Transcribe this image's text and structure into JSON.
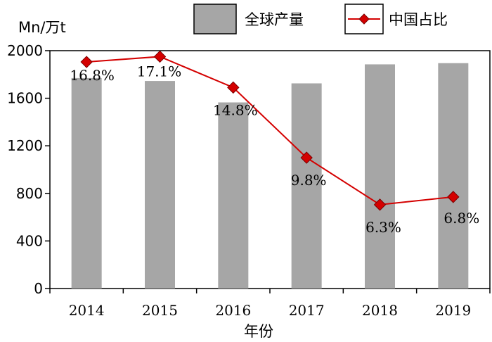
{
  "chart_data": {
    "type": "bar",
    "categories": [
      "2014",
      "2015",
      "2016",
      "2017",
      "2018",
      "2019"
    ],
    "xlabel": "年份",
    "ylabel": "Mn/万t",
    "ylim": [
      0,
      2000
    ],
    "yticks": [
      0,
      400,
      800,
      1200,
      1600,
      2000
    ],
    "grid": false,
    "legend_position": "top-right",
    "series": [
      {
        "name": "全球产量",
        "type": "bar",
        "color": "#a6a6a6",
        "values": [
          1770,
          1745,
          1565,
          1725,
          1885,
          1895
        ]
      },
      {
        "name": "中国占比",
        "type": "line",
        "color": "#d40000",
        "marker": "diamond",
        "position_values": [
          1905,
          1950,
          1690,
          1100,
          705,
          770
        ],
        "labels": [
          "16.8%",
          "17.1%",
          "14.8%",
          "9.8%",
          "6.3%",
          "6.8%"
        ]
      }
    ]
  }
}
